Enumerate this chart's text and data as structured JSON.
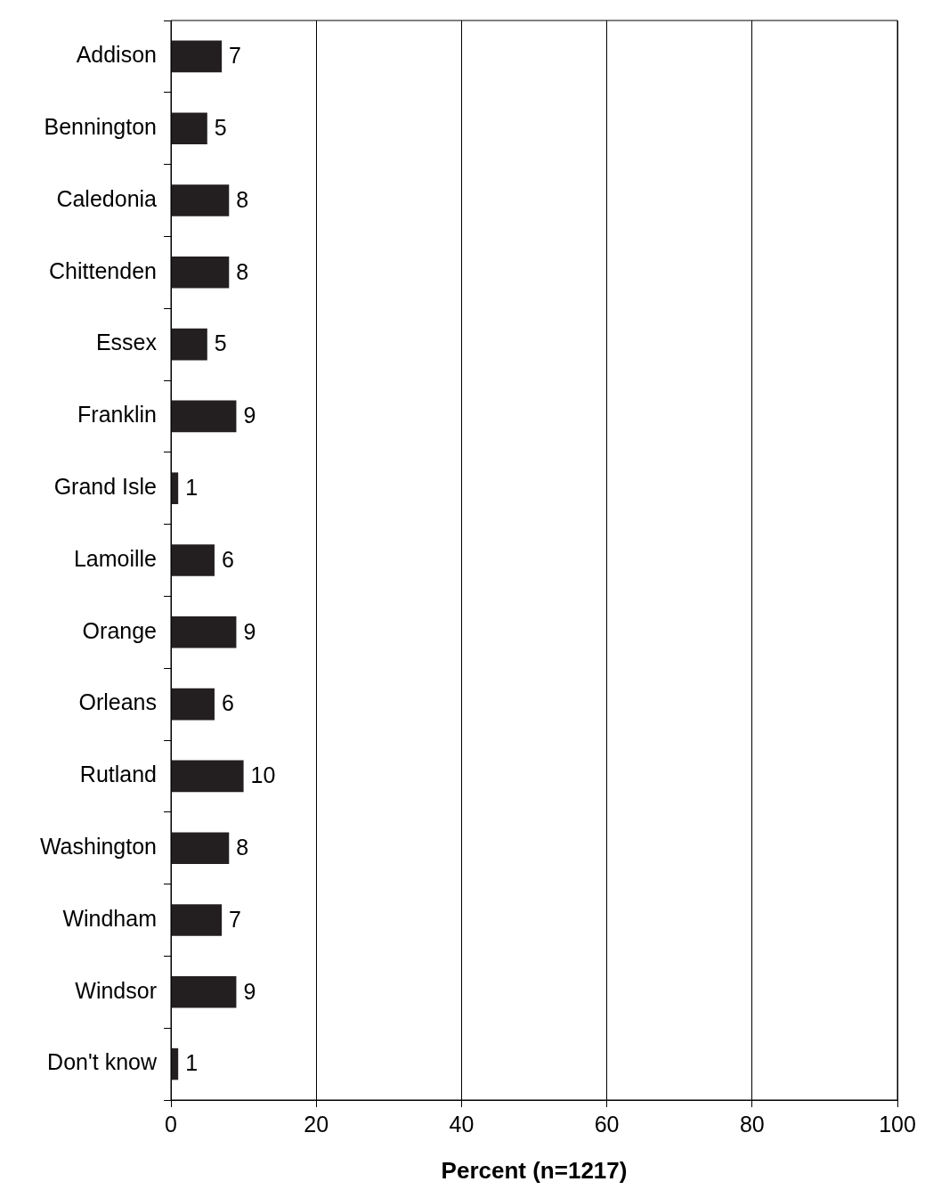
{
  "chart_data": {
    "type": "bar",
    "orientation": "horizontal",
    "xlabel": "Percent (n=1217)",
    "categories": [
      "Addison",
      "Bennington",
      "Caledonia",
      "Chittenden",
      "Essex",
      "Franklin",
      "Grand Isle",
      "Lamoille",
      "Orange",
      "Orleans",
      "Rutland",
      "Washington",
      "Windham",
      "Windsor",
      "Don't know"
    ],
    "values": [
      7,
      5,
      8,
      8,
      5,
      9,
      1,
      6,
      9,
      6,
      10,
      8,
      7,
      9,
      1
    ],
    "color": "#231f20",
    "xlim": [
      0,
      100
    ],
    "xticks": [
      0,
      20,
      40,
      60,
      80,
      100
    ],
    "grid": "x",
    "legend": false,
    "data_labels": true
  }
}
